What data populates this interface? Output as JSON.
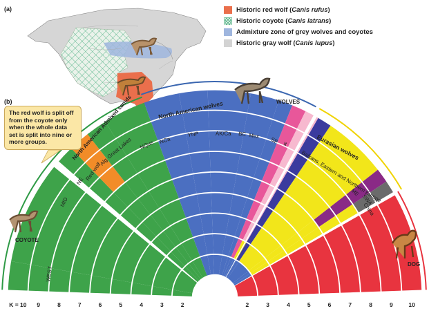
{
  "panel_a": {
    "label": "(a)"
  },
  "panel_b": {
    "label": "(b)"
  },
  "legend": [
    {
      "label": "Historic red wolf (",
      "species": "Canis rufus",
      "tail": ")",
      "color": "#ea6f4c"
    },
    {
      "label": "Historic coyote (",
      "species": "Canis latrans",
      "tail": ")",
      "color": "#5fb88f"
    },
    {
      "label": "Admixture zone of grey wolves and coyotes",
      "species": "",
      "tail": "",
      "color": "#9fb6de"
    },
    {
      "label": "Historic gray wolf (",
      "species": "Canis lupus",
      "tail": ")",
      "color": "#d3d3d3"
    }
  ],
  "callout": "The red wolf is split off from the coyote only when the whole data set is split into nine or more groups.",
  "animals": {
    "coyote": "COYOTE",
    "wolves": "WOLVES",
    "dog": "DOG"
  },
  "groups": {
    "na_admixed": "North American Admixed canids",
    "na_wolves": "North American wolves",
    "eurasian": "Eurasian wolves"
  },
  "populations": {
    "west": "WEST",
    "mid": "MID",
    "ne": "NE",
    "red_wolf": "Red wolf",
    "alg": "Alg",
    "great_lakes": "Great Lakes",
    "nque": "NQue",
    "nca": "NCa",
    "ynp": "YNP",
    "akca": "AK/Ca",
    "bc": "BC",
    "mex": "Mex",
    "sp": "Sp",
    "it": "It",
    "balkans": "Balkans, Eastern and Northern Europe",
    "me": "ME",
    "swa": "SWA",
    "china": "China"
  },
  "k_labels": {
    "left": [
      "K = 10",
      "9",
      "8",
      "7",
      "6",
      "5",
      "4",
      "3",
      "2"
    ],
    "right": [
      "2",
      "3",
      "4",
      "5",
      "6",
      "7",
      "8",
      "9",
      "10"
    ]
  },
  "colors": {
    "coyote": "#3ea34a",
    "wolf": "#4b6fc1",
    "dog": "#e8343f",
    "red_wolf": "#f28c28",
    "great_lakes": "#1f6b3a",
    "mexican": "#e8579a",
    "spanish": "#f7b9cf",
    "italian": "#3b3b9e",
    "eurasian": "#f2e61a",
    "middle_east": "#8a2a86",
    "china": "#6b6b6b"
  }
}
